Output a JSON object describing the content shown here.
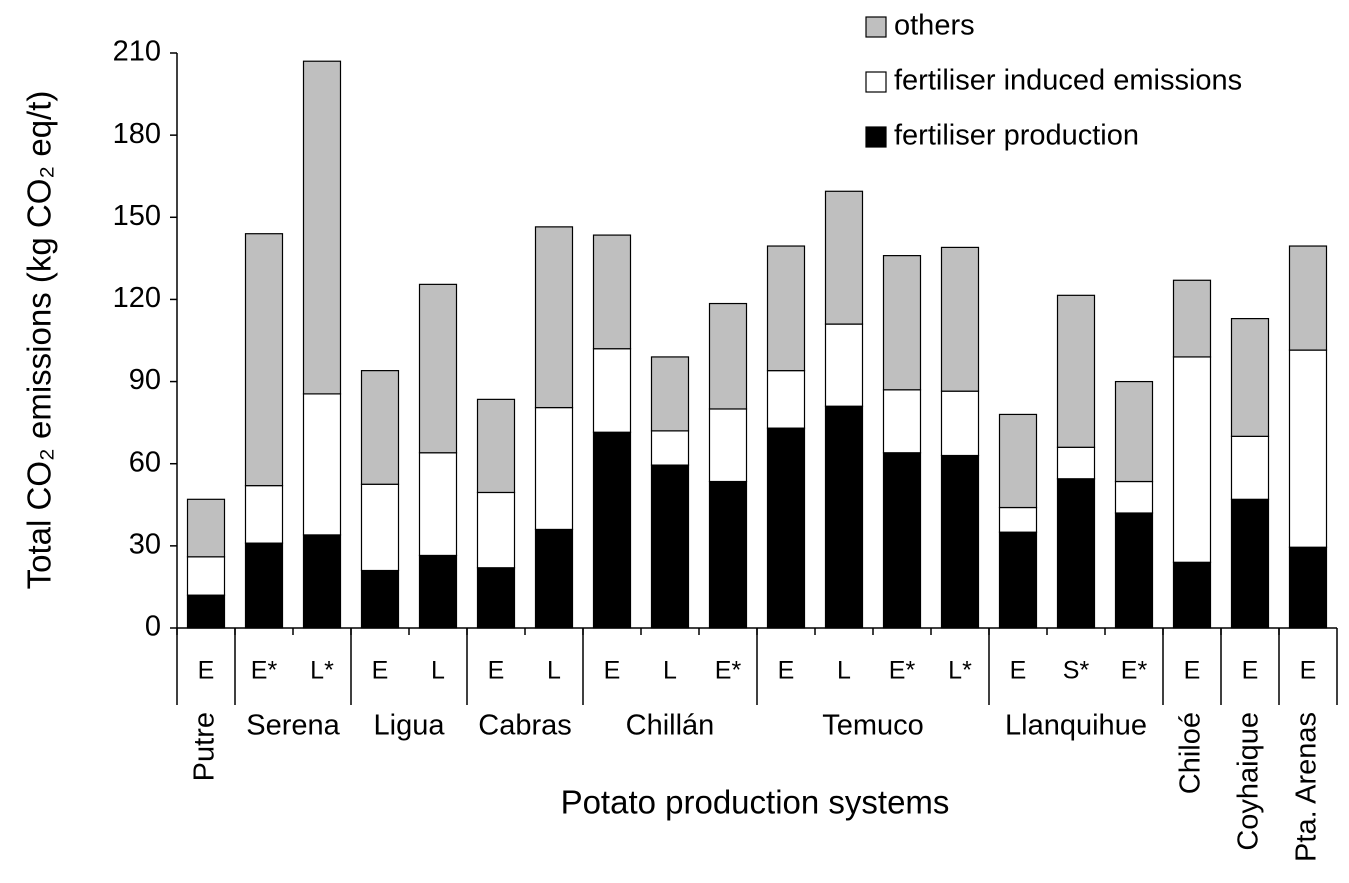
{
  "chart_data": {
    "type": "stacked_bar",
    "x_label": "Potato production systems",
    "y_label": "Total CO₂ emissions (kg CO₂ eq/t)",
    "groups": [
      {
        "name": "Putre",
        "categories": [
          "E"
        ]
      },
      {
        "name": "Serena",
        "categories": [
          "E*",
          "L*"
        ]
      },
      {
        "name": "Ligua",
        "categories": [
          "E",
          "L"
        ]
      },
      {
        "name": "Cabras",
        "categories": [
          "E",
          "L"
        ]
      },
      {
        "name": "Chillán",
        "categories": [
          "E",
          "L",
          "E*"
        ]
      },
      {
        "name": "Temuco",
        "categories": [
          "E",
          "L",
          "E*",
          "L*"
        ]
      },
      {
        "name": "Llanquihue",
        "categories": [
          "E",
          "S*",
          "E*"
        ]
      },
      {
        "name": "Chiloé",
        "categories": [
          "E"
        ]
      },
      {
        "name": "Coyhaique",
        "categories": [
          "E"
        ]
      },
      {
        "name": "Pta. Arenas",
        "categories": [
          "E"
        ]
      }
    ],
    "series": [
      {
        "name": "fertiliser production",
        "color": "#000000",
        "values": [
          12,
          31,
          34,
          21,
          26.5,
          22,
          36,
          71.5,
          59.5,
          53.5,
          73,
          81,
          64,
          63,
          35,
          54.5,
          42,
          24,
          47,
          29.5
        ]
      },
      {
        "name": "fertiliser induced emissions",
        "color": "#ffffff",
        "values": [
          14,
          21,
          51.5,
          31.5,
          37.5,
          27.5,
          44.5,
          30.5,
          12.5,
          26.5,
          21,
          30,
          23,
          23.5,
          9,
          11.5,
          11.5,
          75,
          23,
          72
        ]
      },
      {
        "name": "others",
        "color": "#bfbfbf",
        "values": [
          21,
          92,
          121.5,
          41.5,
          61.5,
          34,
          66,
          41.5,
          27,
          38.5,
          45.5,
          48.5,
          49,
          52.5,
          34,
          55.5,
          36.5,
          28,
          43,
          38
        ]
      }
    ],
    "ylim": [
      0,
      210
    ],
    "yticks": [
      0,
      30,
      60,
      90,
      120,
      150,
      180,
      210
    ]
  }
}
